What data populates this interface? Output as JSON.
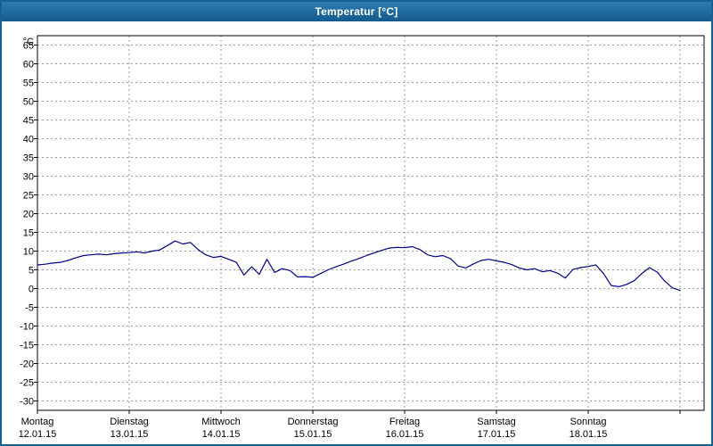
{
  "header": {
    "title": "Temperatur [°C]"
  },
  "chart_data": {
    "type": "line",
    "title": "Temperatur [°C]",
    "y_unit_label": "°C",
    "ylim": [
      -30,
      65
    ],
    "y_step": 5,
    "grid": "dashed",
    "legend": "none",
    "x_categories_days": [
      {
        "name": "Montag",
        "date": "12.01.15"
      },
      {
        "name": "Dienstag",
        "date": "13.01.15"
      },
      {
        "name": "Mittwoch",
        "date": "14.01.15"
      },
      {
        "name": "Donnerstag",
        "date": "15.01.15"
      },
      {
        "name": "Freitag",
        "date": "16.01.15"
      },
      {
        "name": "Samstag",
        "date": "17.01.15"
      },
      {
        "name": "Sonntag",
        "date": "18.01.15"
      }
    ],
    "sample_interval_hours": 2,
    "series": [
      {
        "name": "Temperatur",
        "color": "#00008b",
        "values": [
          6.3,
          6.5,
          6.8,
          7.0,
          7.5,
          8.2,
          8.8,
          9.0,
          9.2,
          9.0,
          9.3,
          9.5,
          9.6,
          9.8,
          9.5,
          10.0,
          10.3,
          11.5,
          12.7,
          11.9,
          12.3,
          10.4,
          9.0,
          8.3,
          8.6,
          7.8,
          7.0,
          3.6,
          5.8,
          3.8,
          7.8,
          4.3,
          5.3,
          4.8,
          3.1,
          3.2,
          3.0,
          4.0,
          5.0,
          5.8,
          6.5,
          7.3,
          8.0,
          8.8,
          9.5,
          10.2,
          10.8,
          11.0,
          10.9,
          11.2,
          10.4,
          9.0,
          8.5,
          8.8,
          8.0,
          6.0,
          5.5,
          6.6,
          7.5,
          7.8,
          7.4,
          7.0,
          6.4,
          5.5,
          5.0,
          5.3,
          4.5,
          4.8,
          4.1,
          2.8,
          5.1,
          5.6,
          5.9,
          6.3,
          4.0,
          0.8,
          0.5,
          1.1,
          2.1,
          4.0,
          5.6,
          4.4,
          2.0,
          0.2,
          -0.5
        ]
      }
    ],
    "colors": {
      "line": "#00008b",
      "grid": "#999999",
      "axis": "#000000",
      "title_bar": "#145a8c"
    }
  }
}
